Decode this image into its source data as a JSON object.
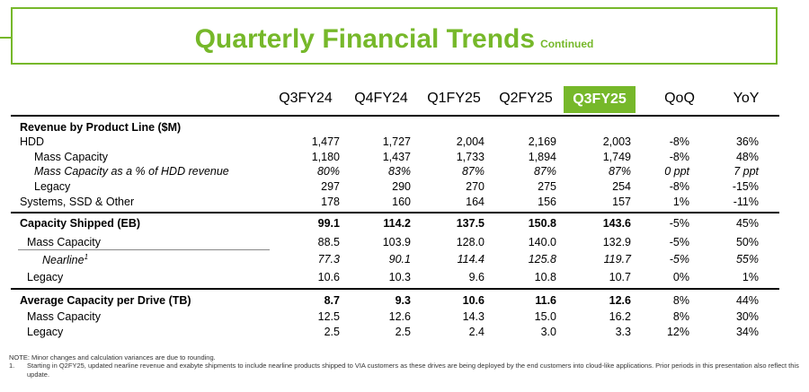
{
  "title": "Quarterly Financial Trends",
  "title_sub": "Continued",
  "columns": [
    "Q3FY24",
    "Q4FY24",
    "Q1FY25",
    "Q2FY25",
    "Q3FY25",
    "QoQ",
    "YoY"
  ],
  "accent_color": "#76b82a",
  "section1": {
    "header": "Revenue by Product Line ($M)",
    "rows": [
      {
        "label": "HDD",
        "values": [
          "1,477",
          "1,727",
          "2,004",
          "2,169",
          "2,003"
        ],
        "qoq": "-8%",
        "yoy": "36%"
      },
      {
        "label": "Mass Capacity",
        "values": [
          "1,180",
          "1,437",
          "1,733",
          "1,894",
          "1,749"
        ],
        "qoq": "-8%",
        "yoy": "48%"
      },
      {
        "label": "Mass Capacity as a % of HDD revenue",
        "values": [
          "80%",
          "83%",
          "87%",
          "87%",
          "87%"
        ],
        "qoq": "0 ppt",
        "yoy": "7 ppt"
      },
      {
        "label": "Legacy",
        "values": [
          "297",
          "290",
          "270",
          "275",
          "254"
        ],
        "qoq": "-8%",
        "yoy": "-15%"
      },
      {
        "label": "Systems, SSD & Other",
        "values": [
          "178",
          "160",
          "164",
          "156",
          "157"
        ],
        "qoq": "1%",
        "yoy": "-11%"
      }
    ]
  },
  "section2": {
    "header": {
      "label": "Capacity Shipped (EB)",
      "values": [
        "99.1",
        "114.2",
        "137.5",
        "150.8",
        "143.6"
      ],
      "qoq": "-5%",
      "yoy": "45%"
    },
    "rows": [
      {
        "label": "Mass Capacity",
        "values": [
          "88.5",
          "103.9",
          "128.0",
          "140.0",
          "132.9"
        ],
        "qoq": "-5%",
        "yoy": "50%"
      },
      {
        "label": "Nearline",
        "footnote": "1",
        "values": [
          "77.3",
          "90.1",
          "114.4",
          "125.8",
          "119.7"
        ],
        "qoq": "-5%",
        "yoy": "55%"
      },
      {
        "label": "Legacy",
        "values": [
          "10.6",
          "10.3",
          "9.6",
          "10.8",
          "10.7"
        ],
        "qoq": "0%",
        "yoy": "1%"
      }
    ]
  },
  "section3": {
    "header": {
      "label": "Average Capacity per Drive (TB)",
      "values": [
        "8.7",
        "9.3",
        "10.6",
        "11.6",
        "12.6"
      ],
      "qoq": "8%",
      "yoy": "44%"
    },
    "rows": [
      {
        "label": "Mass Capacity",
        "values": [
          "12.5",
          "12.6",
          "14.3",
          "15.0",
          "16.2"
        ],
        "qoq": "8%",
        "yoy": "30%"
      },
      {
        "label": "Legacy",
        "values": [
          "2.5",
          "2.5",
          "2.4",
          "3.0",
          "3.3"
        ],
        "qoq": "12%",
        "yoy": "34%"
      }
    ]
  },
  "notes": {
    "note": "NOTE: Minor changes and calculation variances are due to rounding.",
    "fn_num": "1.",
    "fn_text": "Starting in Q2FY25, updated nearline revenue and exabyte shipments to include nearline products shipped to VIA customers as these drives are being deployed by the end customers into cloud-like applications. Prior periods in this presentation also reflect this update."
  }
}
